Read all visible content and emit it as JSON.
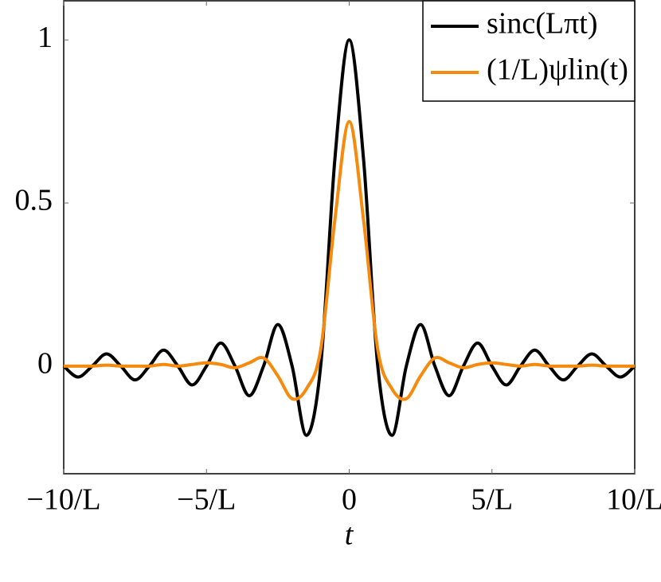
{
  "chart_data": {
    "type": "line",
    "x_label": "t",
    "x": [
      -10,
      -9.5,
      -9,
      -8.5,
      -8,
      -7.5,
      -7,
      -6.5,
      -6,
      -5.5,
      -5,
      -4.5,
      -4,
      -3.5,
      -3,
      -2.5,
      -2,
      -1.5,
      -1,
      -0.5,
      0,
      0.5,
      1,
      1.5,
      2,
      2.5,
      3,
      3.5,
      4,
      4.5,
      5,
      5.5,
      6,
      6.5,
      7,
      7.5,
      8,
      8.5,
      9,
      9.5,
      10
    ],
    "series": [
      {
        "name": "sinc(Lπt)",
        "color": "#000000",
        "values": [
          0,
          -0.0335,
          0,
          0.0374,
          0,
          -0.0424,
          0,
          0.049,
          0,
          -0.0579,
          0,
          0.0707,
          0,
          -0.0909,
          0,
          0.1273,
          0,
          -0.2122,
          0,
          0.6366,
          1,
          0.6366,
          0,
          -0.2122,
          0,
          0.1273,
          0,
          -0.0909,
          0,
          0.0707,
          0,
          -0.0579,
          0,
          0.049,
          0,
          -0.0424,
          0,
          0.0374,
          0,
          -0.0335,
          0
        ]
      },
      {
        "name": "(1/L)ψlin(t)",
        "color": "#f58a0c",
        "values": [
          0,
          0,
          0,
          0.003,
          0,
          0,
          0,
          0.005,
          0,
          0.005,
          0.01,
          0.005,
          -0.005,
          0.01,
          0.025,
          -0.03,
          -0.1,
          -0.07,
          0.05,
          0.45,
          0.75,
          0.45,
          0.05,
          -0.07,
          -0.1,
          -0.03,
          0.025,
          0.01,
          -0.005,
          0.005,
          0.01,
          0.005,
          0,
          0.005,
          0,
          0,
          0,
          0.003,
          0,
          0,
          0
        ]
      }
    ],
    "xlim": [
      -10,
      10
    ],
    "xticks": [
      {
        "value": -10,
        "label": "−10/L"
      },
      {
        "value": -5,
        "label": "−5/L"
      },
      0,
      {
        "value": 5,
        "label": "5/L"
      },
      {
        "value": 10,
        "label": "10/L"
      }
    ],
    "ylim": [
      -0.33,
      1.12
    ],
    "yticks": [
      0,
      0.5,
      1
    ],
    "legend": "upper right",
    "grid": false
  }
}
